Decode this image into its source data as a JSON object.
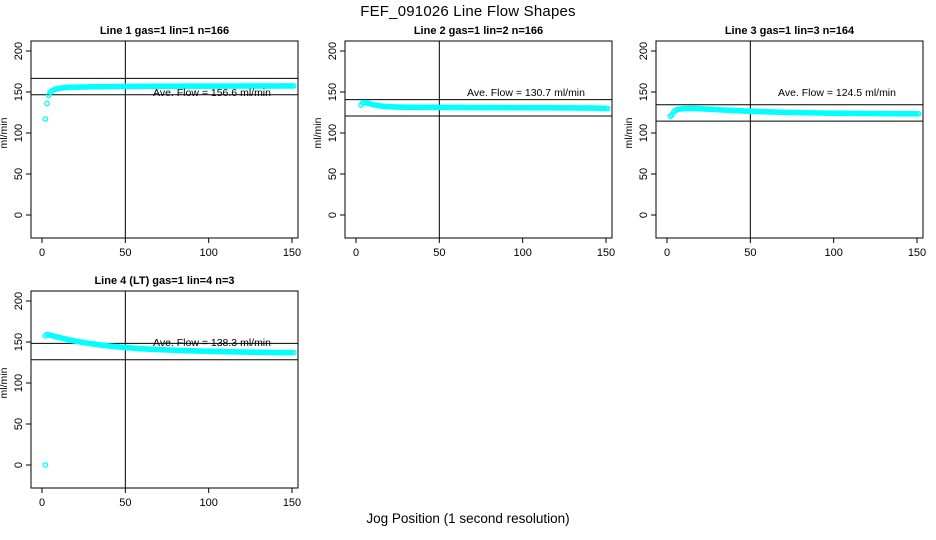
{
  "figure": {
    "title": "FEF_091026  Line Flow Shapes",
    "xlabel": "Jog Position (1 second resolution)",
    "background_color": "#FFFFFF",
    "axis_color": "#000000",
    "point_color": "#00FFFF"
  },
  "chart_data": [
    {
      "type": "scatter",
      "title": "Line 1 gas=1 lin=1 n=166",
      "annotation": "Ave. Flow =  156.6  ml/min",
      "ave_flow": 156.6,
      "ylabel": "ml/min",
      "xticks": [
        0,
        50,
        100,
        150
      ],
      "yticks": [
        0,
        50,
        100,
        150,
        200
      ],
      "xlim": [
        0,
        150
      ],
      "ylim": [
        0,
        200
      ],
      "grid": false,
      "vline_x": 50,
      "hlines": [
        166.6,
        146.6
      ],
      "annotation_pos": [
        102,
        150
      ],
      "points": [
        [
          2,
          117
        ],
        [
          3,
          136
        ],
        [
          4,
          146
        ],
        [
          5,
          149.5
        ],
        [
          6,
          151.5
        ],
        [
          8,
          153.5
        ],
        [
          10,
          154.5
        ],
        [
          14,
          155.4
        ],
        [
          20,
          155.9
        ],
        [
          30,
          156.3
        ],
        [
          45,
          156.7
        ],
        [
          60,
          156.9
        ],
        [
          80,
          157.1
        ],
        [
          100,
          157.2
        ],
        [
          125,
          157.3
        ],
        [
          151,
          157.4
        ]
      ]
    },
    {
      "type": "scatter",
      "title": "Line 2 gas=1 lin=2 n=166",
      "annotation": "Ave. Flow =  130.7  ml/min",
      "ave_flow": 130.7,
      "ylabel": "ml/min",
      "xticks": [
        0,
        50,
        100,
        150
      ],
      "yticks": [
        0,
        50,
        100,
        150,
        200
      ],
      "xlim": [
        0,
        150
      ],
      "ylim": [
        0,
        200
      ],
      "grid": false,
      "vline_x": 50,
      "hlines": [
        140.7,
        120.7
      ],
      "annotation_pos": [
        102,
        150
      ],
      "points": [
        [
          3,
          134
        ],
        [
          4,
          136.5
        ],
        [
          5,
          137
        ],
        [
          6,
          136.8
        ],
        [
          8,
          135.8
        ],
        [
          10,
          134.8
        ],
        [
          13,
          133.5
        ],
        [
          16,
          132.6
        ],
        [
          20,
          132
        ],
        [
          26,
          131.6
        ],
        [
          35,
          131.3
        ],
        [
          50,
          131.2
        ],
        [
          70,
          131
        ],
        [
          90,
          130.9
        ],
        [
          110,
          130.8
        ],
        [
          130,
          130.6
        ],
        [
          145,
          130.4
        ],
        [
          151,
          129.8
        ]
      ]
    },
    {
      "type": "scatter",
      "title": "Line 3 gas=1 lin=3 n=164",
      "annotation": "Ave. Flow =  124.5  ml/min",
      "ave_flow": 124.5,
      "ylabel": "ml/min",
      "xticks": [
        0,
        50,
        100,
        150
      ],
      "yticks": [
        0,
        50,
        100,
        150,
        200
      ],
      "xlim": [
        0,
        150
      ],
      "ylim": [
        0,
        200
      ],
      "grid": false,
      "vline_x": 50,
      "hlines": [
        134.5,
        114.5
      ],
      "annotation_pos": [
        102,
        150
      ],
      "points": [
        [
          2,
          120.5
        ],
        [
          3,
          122
        ],
        [
          4,
          125.5
        ],
        [
          5,
          127.5
        ],
        [
          6,
          128.5
        ],
        [
          8,
          129.3
        ],
        [
          10,
          129.7
        ],
        [
          14,
          129.9
        ],
        [
          18,
          129.8
        ],
        [
          22,
          129.4
        ],
        [
          27,
          128.8
        ],
        [
          33,
          128.1
        ],
        [
          40,
          127.4
        ],
        [
          50,
          126.5
        ],
        [
          60,
          125.8
        ],
        [
          72,
          125.1
        ],
        [
          85,
          124.6
        ],
        [
          100,
          124.1
        ],
        [
          115,
          123.8
        ],
        [
          130,
          123.6
        ],
        [
          151,
          123.4
        ]
      ]
    },
    {
      "type": "scatter",
      "title": "Line 4 (LT) gas=1 lin=4 n=3",
      "annotation": "Ave. Flow =  138.3  ml/min",
      "ave_flow": 138.3,
      "ylabel": "ml/min",
      "xticks": [
        0,
        50,
        100,
        150
      ],
      "yticks": [
        0,
        50,
        100,
        150,
        200
      ],
      "xlim": [
        0,
        150
      ],
      "ylim": [
        0,
        200
      ],
      "grid": false,
      "vline_x": 50,
      "hlines": [
        148.3,
        128.3
      ],
      "annotation_pos": [
        102,
        150
      ],
      "points": [
        [
          2,
          0
        ],
        [
          2,
          157.5
        ],
        [
          3,
          159
        ],
        [
          4,
          158.8
        ],
        [
          5,
          158.2
        ],
        [
          7,
          157.2
        ],
        [
          9,
          156.2
        ],
        [
          12,
          154.6
        ],
        [
          15,
          153.2
        ],
        [
          18,
          151.9
        ],
        [
          22,
          150.4
        ],
        [
          26,
          149
        ],
        [
          30,
          147.8
        ],
        [
          35,
          146.4
        ],
        [
          40,
          145.2
        ],
        [
          45,
          144.2
        ],
        [
          50,
          143.3
        ],
        [
          55,
          142.5
        ],
        [
          60,
          141.8
        ],
        [
          67,
          141
        ],
        [
          75,
          140.3
        ],
        [
          83,
          139.7
        ],
        [
          92,
          139.1
        ],
        [
          100,
          138.7
        ],
        [
          110,
          138.2
        ],
        [
          120,
          137.8
        ],
        [
          130,
          137.5
        ],
        [
          140,
          137.2
        ],
        [
          151,
          137
        ]
      ]
    }
  ]
}
